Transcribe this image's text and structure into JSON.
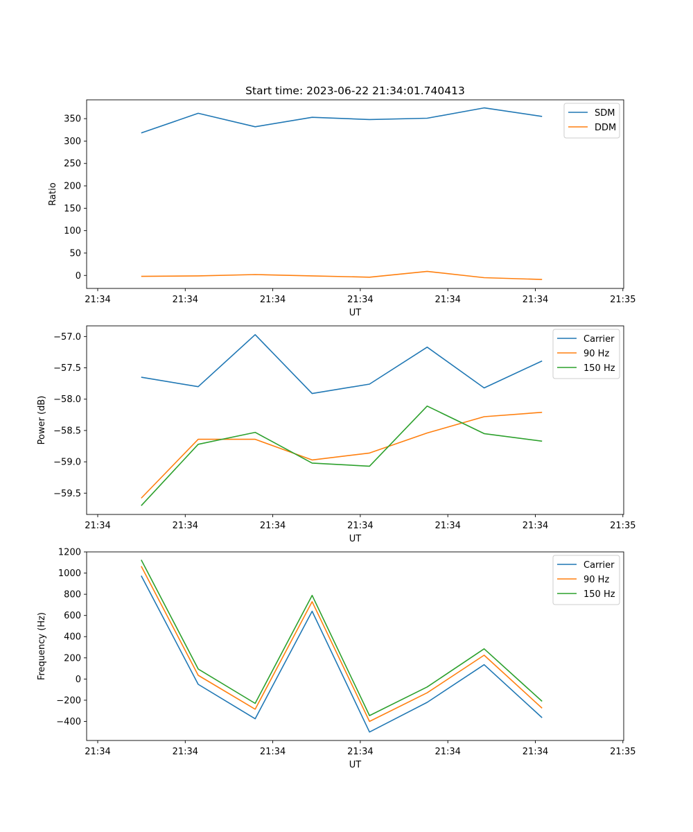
{
  "chart_data": [
    {
      "type": "line",
      "title": "Start time: 2023-06-22 21:34:01.740413",
      "xlabel": "UT",
      "ylabel": "Ratio",
      "x_tick_labels": [
        "21:34",
        "21:34",
        "21:34",
        "21:34",
        "21:34",
        "21:34",
        "21:35"
      ],
      "ylim": [
        -29,
        392
      ],
      "y_ticks": [
        0,
        50,
        100,
        150,
        200,
        250,
        300,
        350
      ],
      "y_tick_labels": [
        "0",
        "50",
        "100",
        "150",
        "200",
        "250",
        "300",
        "350"
      ],
      "grid": false,
      "legend": "top-right",
      "series": [
        {
          "name": "SDM",
          "color": "#1f77b4",
          "values": [
            318,
            362,
            332,
            353,
            348,
            351,
            374,
            355
          ]
        },
        {
          "name": "DDM",
          "color": "#ff7f0e",
          "values": [
            -2,
            -1,
            2,
            -1,
            -4,
            9,
            -5,
            -9
          ]
        }
      ]
    },
    {
      "type": "line",
      "title": "",
      "xlabel": "UT",
      "ylabel": "Power (dB)",
      "x_tick_labels": [
        "21:34",
        "21:34",
        "21:34",
        "21:34",
        "21:34",
        "21:34",
        "21:35"
      ],
      "ylim": [
        -59.84,
        -56.83
      ],
      "y_ticks": [
        -59.5,
        -59.0,
        -58.5,
        -58.0,
        -57.5,
        -57.0
      ],
      "y_tick_labels": [
        "−59.5",
        "−59.0",
        "−58.5",
        "−58.0",
        "−57.5",
        "−57.0"
      ],
      "grid": false,
      "legend": "top-right",
      "series": [
        {
          "name": "Carrier",
          "color": "#1f77b4",
          "values": [
            -57.65,
            -57.8,
            -56.97,
            -57.91,
            -57.76,
            -57.17,
            -57.82,
            -57.39
          ]
        },
        {
          "name": "90 Hz",
          "color": "#ff7f0e",
          "values": [
            -59.58,
            -58.64,
            -58.64,
            -58.97,
            -58.86,
            -58.54,
            -58.28,
            -58.21
          ]
        },
        {
          "name": "150 Hz",
          "color": "#2ca02c",
          "values": [
            -59.7,
            -58.72,
            -58.53,
            -59.02,
            -59.07,
            -58.11,
            -58.55,
            -58.67
          ]
        }
      ]
    },
    {
      "type": "line",
      "title": "",
      "xlabel": "UT",
      "ylabel": "Frequency (Hz)",
      "x_tick_labels": [
        "21:34",
        "21:34",
        "21:34",
        "21:34",
        "21:34",
        "21:34",
        "21:35"
      ],
      "ylim": [
        -580,
        1200
      ],
      "y_ticks": [
        -400,
        -200,
        0,
        200,
        400,
        600,
        800,
        1000,
        1200
      ],
      "y_tick_labels": [
        "−400",
        "−200",
        "0",
        "200",
        "400",
        "600",
        "800",
        "1000",
        "1200"
      ],
      "grid": false,
      "legend": "top-right",
      "series": [
        {
          "name": "Carrier",
          "color": "#1f77b4",
          "values": [
            975,
            -50,
            -375,
            640,
            -500,
            -220,
            135,
            -365
          ]
        },
        {
          "name": "90 Hz",
          "color": "#ff7f0e",
          "values": [
            1065,
            35,
            -285,
            730,
            -400,
            -130,
            225,
            -275
          ]
        },
        {
          "name": "150 Hz",
          "color": "#2ca02c",
          "values": [
            1125,
            95,
            -230,
            790,
            -345,
            -75,
            285,
            -210
          ]
        }
      ]
    }
  ]
}
